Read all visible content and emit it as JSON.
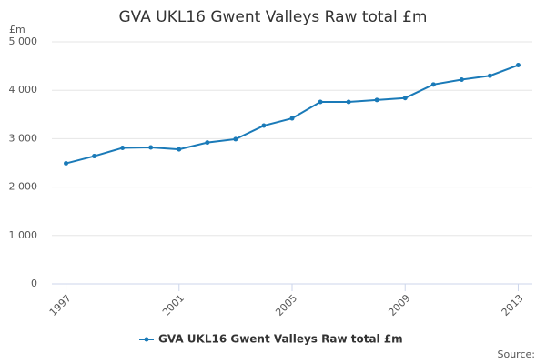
{
  "chart_data": {
    "type": "line",
    "title": "GVA UKL16 Gwent Valleys Raw total £m",
    "y_label": "£m",
    "source": "Source:",
    "x": [
      1997,
      1998,
      1999,
      2000,
      2001,
      2002,
      2003,
      2004,
      2005,
      2006,
      2007,
      2008,
      2009,
      2010,
      2011,
      2012,
      2013
    ],
    "series": [
      {
        "name": "GVA UKL16 Gwent Valleys Raw total £m",
        "color": "#1a7ab8",
        "values": [
          2490,
          2640,
          2810,
          2820,
          2780,
          2920,
          2990,
          3270,
          3420,
          3760,
          3760,
          3800,
          3840,
          4120,
          4220,
          4300,
          4520
        ]
      }
    ],
    "xlim": [
      1996.5,
      2013.5
    ],
    "xticks": [
      1997,
      2001,
      2005,
      2009,
      2013
    ],
    "ylim": [
      0,
      5000
    ],
    "yticks": [
      0,
      {
        "value": 1000,
        "label": "1 000"
      },
      {
        "value": 2000,
        "label": "2 000"
      },
      {
        "value": 3000,
        "label": "3 000"
      },
      {
        "value": 4000,
        "label": "4 000"
      },
      {
        "value": 5000,
        "label": "5 000"
      }
    ],
    "grid": true,
    "legend": "bottom"
  }
}
